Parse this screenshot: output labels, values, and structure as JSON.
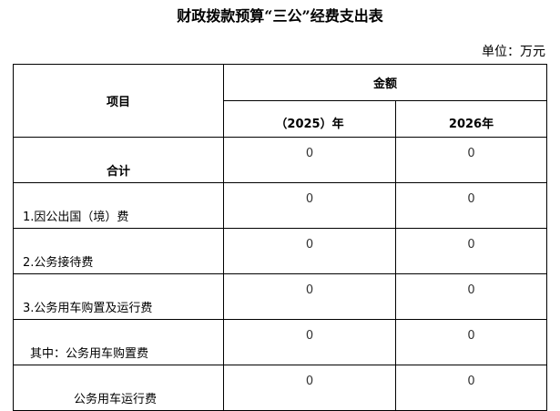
{
  "title": "财政拨款预算“三公”经费支出表",
  "unit": "单位：万元",
  "headers": {
    "item": "项目",
    "amount": "金额",
    "col_2025": "（2025）年",
    "col_2026": "2026年"
  },
  "rows": [
    {
      "label": "合计",
      "v2025": "0",
      "v2026": "0"
    },
    {
      "label": "1.因公出国（境）费",
      "v2025": "0",
      "v2026": "0"
    },
    {
      "label": "2.公务接待费",
      "v2025": "0",
      "v2026": "0"
    },
    {
      "label": "3.公务用车购置及运行费",
      "v2025": "0",
      "v2026": "0"
    },
    {
      "label": "其中：公务用车购置费",
      "v2025": "0",
      "v2026": "0"
    },
    {
      "label": "公务用车运行费",
      "v2025": "0",
      "v2026": "0"
    }
  ]
}
